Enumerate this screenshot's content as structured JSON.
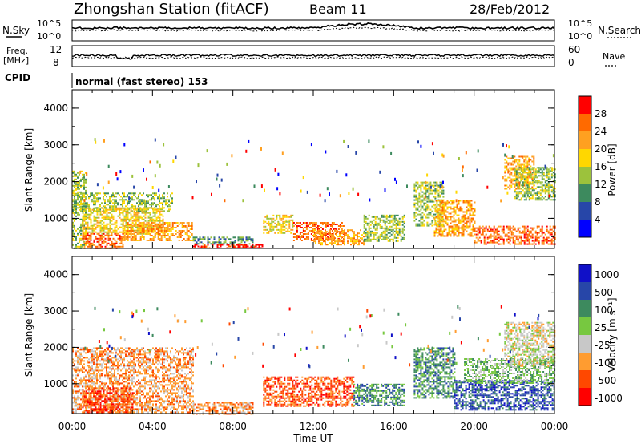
{
  "header": {
    "station": "Zhongshan Station (fitACF)",
    "beam": "Beam 11",
    "date": "28/Feb/2012"
  },
  "top_panels": {
    "nsky_label": "N.Sky",
    "nsky_ticks": [
      "10^5",
      "10^0"
    ],
    "nsearch_label": "N.Search",
    "nsearch_ticks": [
      "10^5",
      "10^0"
    ],
    "freq_label_1": "Freq.",
    "freq_label_2": "[MHz]",
    "freq_ticks": [
      "12",
      "8"
    ],
    "nave_label": "Nave",
    "nave_ticks": [
      "60",
      "0"
    ],
    "cpid_label": "CPID",
    "cpid_text": "normal (fast stereo) 153"
  },
  "colors": {
    "power_scale": [
      "#0000ff",
      "#2746a8",
      "#3d8a5e",
      "#9cc23c",
      "#ffd700",
      "#ffa020",
      "#ff6a00",
      "#ff0000"
    ],
    "velocity_scale": [
      "#ff0000",
      "#ff4800",
      "#ff9c30",
      "#c8c8c8",
      "#77c840",
      "#3d8a5e",
      "#2746a8",
      "#1010c8"
    ]
  },
  "chart_data": [
    {
      "type": "heatmap",
      "panel": "power",
      "ylabel": "Slant Range [km]",
      "ylim": [
        180,
        4500
      ],
      "yticks": [
        "1000",
        "2000",
        "3000",
        "4000"
      ],
      "xlabel": "Time UT",
      "xticks": [
        "00:00",
        "04:00",
        "08:00",
        "12:00",
        "16:00",
        "20:00",
        "00:00"
      ],
      "colorbar": {
        "label": "Power [dB]",
        "ticks": [
          "4",
          "8",
          "12",
          "16",
          "20",
          "24",
          "28"
        ]
      },
      "echo_regions": [
        {
          "t": [
            0.0,
            0.7
          ],
          "r": [
            200,
            2300
          ],
          "level": 3
        },
        {
          "t": [
            0.0,
            5.0
          ],
          "r": [
            1200,
            1700
          ],
          "level": 3
        },
        {
          "t": [
            0.5,
            4.5
          ],
          "r": [
            600,
            1300
          ],
          "level": 4
        },
        {
          "t": [
            0.5,
            2.5
          ],
          "r": [
            200,
            600
          ],
          "level": 6
        },
        {
          "t": [
            2.5,
            6.0
          ],
          "r": [
            400,
            900
          ],
          "level": 5
        },
        {
          "t": [
            6.0,
            9.0
          ],
          "r": [
            300,
            500
          ],
          "level": 2
        },
        {
          "t": [
            6.0,
            9.5
          ],
          "r": [
            180,
            300
          ],
          "level": 7
        },
        {
          "t": [
            9.5,
            11.0
          ],
          "r": [
            600,
            1100
          ],
          "level": 4
        },
        {
          "t": [
            11.0,
            13.5
          ],
          "r": [
            400,
            900
          ],
          "level": 6
        },
        {
          "t": [
            12.0,
            14.5
          ],
          "r": [
            300,
            700
          ],
          "level": 5
        },
        {
          "t": [
            14.5,
            16.5
          ],
          "r": [
            400,
            1100
          ],
          "level": 3
        },
        {
          "t": [
            17.0,
            18.5
          ],
          "r": [
            800,
            2000
          ],
          "level": 3
        },
        {
          "t": [
            18.0,
            20.0
          ],
          "r": [
            500,
            1500
          ],
          "level": 5
        },
        {
          "t": [
            20.0,
            24.0
          ],
          "r": [
            300,
            800
          ],
          "level": 6
        },
        {
          "t": [
            21.5,
            23.0
          ],
          "r": [
            1800,
            2700
          ],
          "level": 5
        },
        {
          "t": [
            22.0,
            24.0
          ],
          "r": [
            1500,
            2400
          ],
          "level": 3
        }
      ]
    },
    {
      "type": "heatmap",
      "panel": "velocity",
      "ylabel": "Slant Range [km]",
      "ylim": [
        180,
        4500
      ],
      "yticks": [
        "1000",
        "2000",
        "3000",
        "4000"
      ],
      "xlabel": "Time UT",
      "xticks": [
        "00:00",
        "04:00",
        "08:00",
        "12:00",
        "16:00",
        "20:00",
        "00:00"
      ],
      "colorbar": {
        "label": "Velocity [m s⁻¹]",
        "ticks": [
          "1000",
          "500",
          "100",
          "25",
          "-25",
          "-100",
          "-500",
          "-1000"
        ]
      },
      "echo_regions": [
        {
          "t": [
            0.0,
            6.0
          ],
          "r": [
            200,
            2000
          ],
          "level": 2
        },
        {
          "t": [
            0.5,
            3.0
          ],
          "r": [
            200,
            900
          ],
          "level": 1
        },
        {
          "t": [
            6.0,
            9.0
          ],
          "r": [
            180,
            500
          ],
          "level": 2
        },
        {
          "t": [
            9.5,
            14.0
          ],
          "r": [
            400,
            1200
          ],
          "level": 1
        },
        {
          "t": [
            14.0,
            16.5
          ],
          "r": [
            400,
            1000
          ],
          "level": 5
        },
        {
          "t": [
            17.0,
            19.0
          ],
          "r": [
            600,
            2000
          ],
          "level": 5
        },
        {
          "t": [
            19.0,
            24.0
          ],
          "r": [
            300,
            1100
          ],
          "level": 6
        },
        {
          "t": [
            19.5,
            24.0
          ],
          "r": [
            1000,
            1700
          ],
          "level": 4
        },
        {
          "t": [
            21.5,
            24.0
          ],
          "r": [
            1500,
            2700
          ],
          "level": 3
        }
      ]
    }
  ]
}
